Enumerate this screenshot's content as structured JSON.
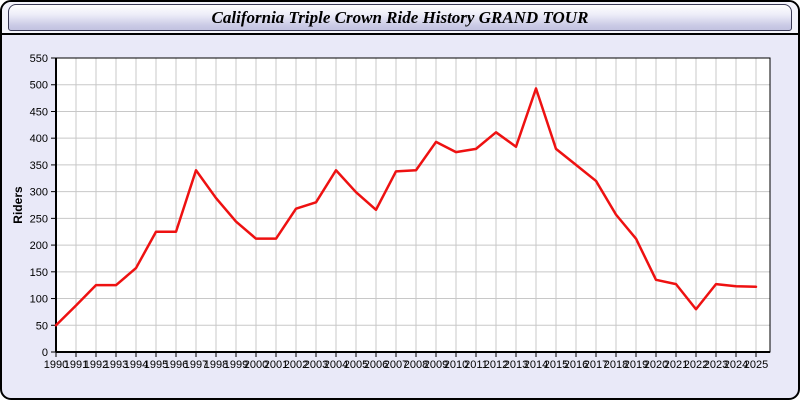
{
  "window": {
    "title": "California Triple Crown Ride History GRAND TOUR"
  },
  "chart_data": {
    "type": "line",
    "title": "California Triple Crown Ride History GRAND TOUR",
    "ylabel": "Riders",
    "xlabel": "",
    "categories": [
      "1990",
      "1991",
      "1992",
      "1993",
      "1994",
      "1995",
      "1996",
      "1997",
      "1998",
      "1999",
      "2000",
      "2001",
      "2002",
      "2003",
      "2004",
      "2005",
      "2006",
      "2007",
      "2008",
      "2009",
      "2010",
      "2011",
      "2012",
      "2013",
      "2014",
      "2015",
      "2016",
      "2017",
      "2018",
      "2019",
      "2020",
      "2021",
      "2022",
      "2023",
      "2024",
      "2025"
    ],
    "series": [
      {
        "name": "Riders",
        "color": "#ee1111",
        "values": [
          50,
          87,
          125,
          125,
          157,
          225,
          225,
          340,
          288,
          244,
          212,
          212,
          268,
          280,
          340,
          299,
          266,
          338,
          340,
          393,
          374,
          380,
          411,
          384,
          493,
          380,
          350,
          320,
          257,
          212,
          135,
          127,
          80,
          127,
          123,
          122
        ]
      }
    ],
    "ylim": [
      0,
      550
    ],
    "ytick_step": 50,
    "grid": true,
    "legend_position": "none"
  },
  "colors": {
    "line": "#ee1111",
    "page_background": "#e9e9f8",
    "titlebar_gradient_top": "#ffffff",
    "titlebar_gradient_bottom": "#c2c2e0",
    "plot_background": "#ffffff",
    "grid_line": "#c8c8c8",
    "axis": "#000000"
  }
}
